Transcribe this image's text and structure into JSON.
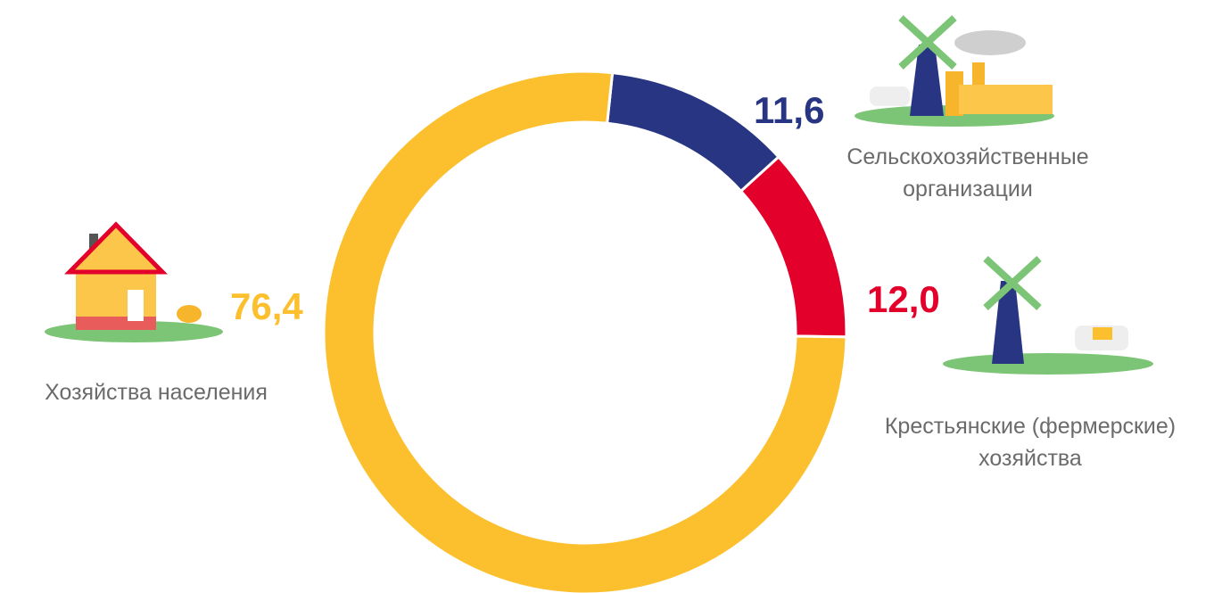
{
  "chart_data": {
    "type": "donut",
    "categories": [
      "Сельскохозяйственные организации",
      "Крестьянские (фермерские) хозяйства",
      "Хозяйства населения"
    ],
    "values": [
      11.6,
      12.0,
      76.4
    ],
    "value_labels": [
      "11,6",
      "12,0",
      "76,4"
    ],
    "colors": [
      "#283583",
      "#e3002b",
      "#fcc02e"
    ]
  }
}
